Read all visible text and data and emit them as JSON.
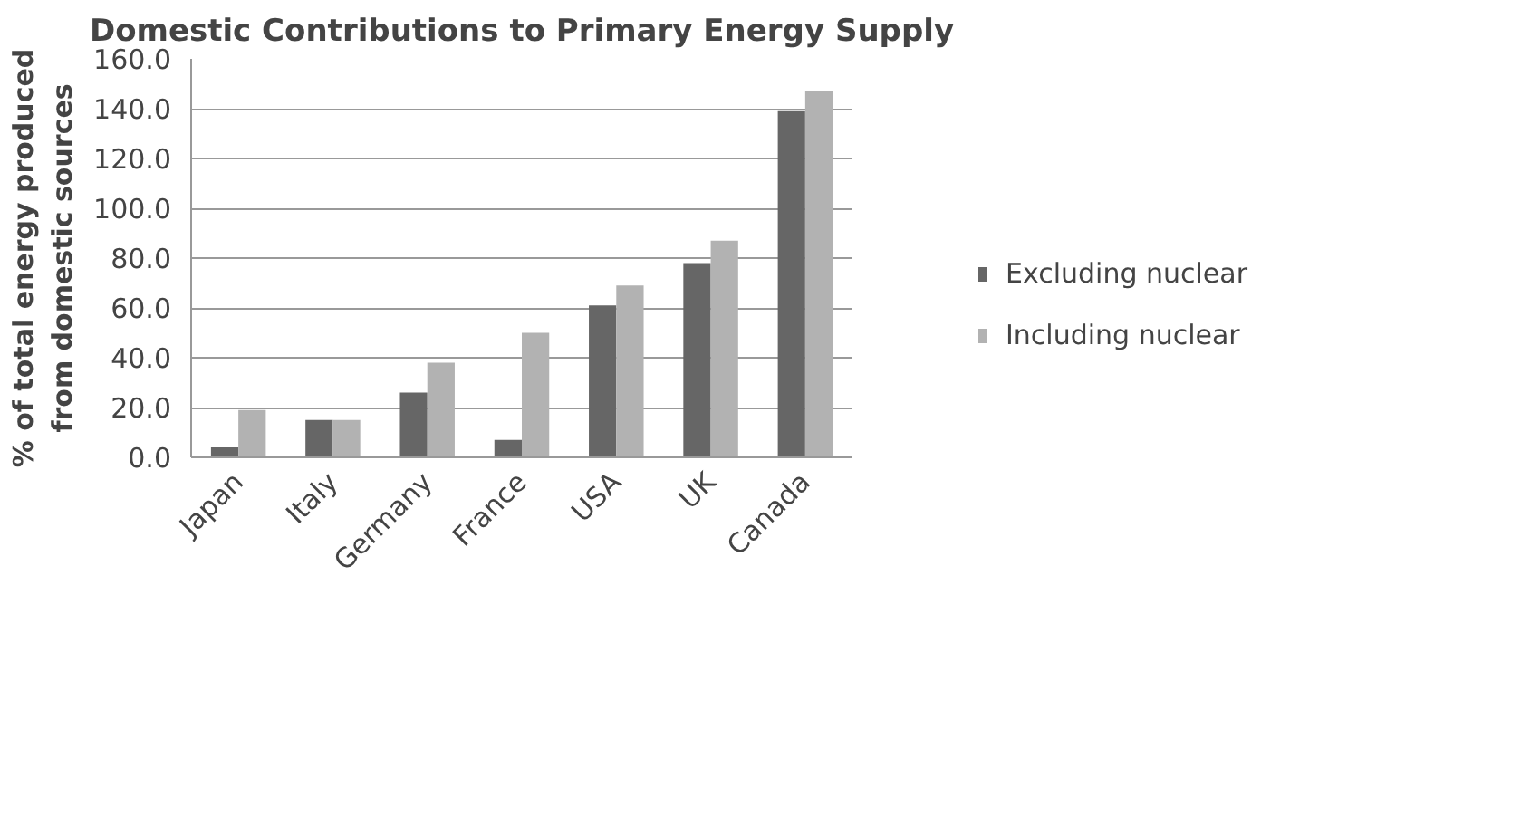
{
  "chart_data": {
    "type": "bar",
    "title": "Domestic Contributions to Primary Energy Supply",
    "ylabel": "% of total energy produced\nfrom domestic sources",
    "categories": [
      "Japan",
      "Italy",
      "Germany",
      "France",
      "USA",
      "UK",
      "Canada"
    ],
    "series": [
      {
        "name": "Excluding nuclear",
        "color": "#666666",
        "values": [
          4,
          15,
          26,
          7,
          61,
          78,
          139
        ]
      },
      {
        "name": "Including nuclear",
        "color": "#b2b2b2",
        "values": [
          19,
          15,
          38,
          50,
          69,
          87,
          147
        ]
      }
    ],
    "ylim": [
      0,
      160
    ],
    "yticks": [
      {
        "value": 0,
        "label": "0.0"
      },
      {
        "value": 20,
        "label": "20.0"
      },
      {
        "value": 40,
        "label": "40.0"
      },
      {
        "value": 60,
        "label": "60.0"
      },
      {
        "value": 80,
        "label": "80.0"
      },
      {
        "value": 100,
        "label": "100.0"
      },
      {
        "value": 120,
        "label": "120.0"
      },
      {
        "value": 140,
        "label": "140.0"
      },
      {
        "value": 160,
        "label": "160.0"
      }
    ],
    "grid": "y",
    "legend": "right"
  }
}
